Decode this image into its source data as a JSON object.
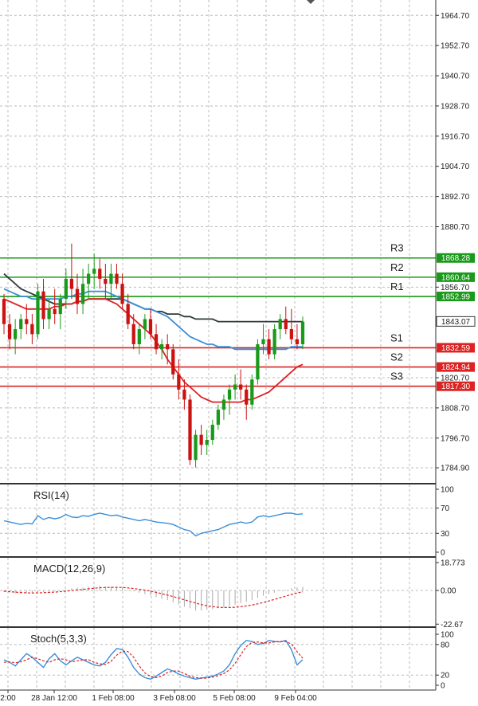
{
  "chart_data": {
    "type": "candlestick",
    "x_labels": [
      "2:00",
      "28 Jan 12:00",
      "1 Feb 08:00",
      "3 Feb 08:00",
      "5 Feb 08:00",
      "9 Feb 04:00"
    ],
    "main": {
      "ylim": [
        1778.9,
        1970.8
      ],
      "y_ticks": [
        "1964.70",
        "1952.70",
        "1940.70",
        "1928.70",
        "1916.70",
        "1904.70",
        "1892.70",
        "1880.70",
        "1856.70",
        "1820.70",
        "1808.70",
        "1796.70",
        "1784.90"
      ],
      "current_price": "1843.07",
      "candles": [
        [
          1852,
          1854,
          1838,
          1842
        ],
        [
          1842,
          1846,
          1832,
          1836
        ],
        [
          1836,
          1844,
          1830,
          1840
        ],
        [
          1840,
          1846,
          1836,
          1844
        ],
        [
          1844,
          1850,
          1838,
          1842
        ],
        [
          1842,
          1846,
          1834,
          1838
        ],
        [
          1838,
          1858,
          1836,
          1855
        ],
        [
          1855,
          1860,
          1840,
          1844
        ],
        [
          1844,
          1852,
          1840,
          1848
        ],
        [
          1848,
          1856,
          1842,
          1846
        ],
        [
          1846,
          1854,
          1840,
          1852
        ],
        [
          1852,
          1864,
          1848,
          1860
        ],
        [
          1860,
          1874,
          1852,
          1856
        ],
        [
          1856,
          1862,
          1846,
          1850
        ],
        [
          1850,
          1864,
          1846,
          1858
        ],
        [
          1858,
          1866,
          1852,
          1862
        ],
        [
          1862,
          1870,
          1856,
          1864
        ],
        [
          1864,
          1868,
          1856,
          1860
        ],
        [
          1860,
          1866,
          1852,
          1858
        ],
        [
          1858,
          1866,
          1852,
          1862
        ],
        [
          1862,
          1866,
          1856,
          1858
        ],
        [
          1858,
          1862,
          1848,
          1850
        ],
        [
          1850,
          1854,
          1840,
          1842
        ],
        [
          1842,
          1846,
          1832,
          1834
        ],
        [
          1834,
          1842,
          1830,
          1840
        ],
        [
          1840,
          1846,
          1836,
          1844
        ],
        [
          1844,
          1848,
          1836,
          1838
        ],
        [
          1838,
          1842,
          1830,
          1832
        ],
        [
          1832,
          1836,
          1828,
          1834
        ],
        [
          1834,
          1838,
          1826,
          1832
        ],
        [
          1832,
          1834,
          1820,
          1822
        ],
        [
          1822,
          1828,
          1812,
          1816
        ],
        [
          1816,
          1820,
          1808,
          1812
        ],
        [
          1812,
          1814,
          1786,
          1788
        ],
        [
          1788,
          1800,
          1785,
          1798
        ],
        [
          1798,
          1802,
          1790,
          1794
        ],
        [
          1794,
          1800,
          1790,
          1796
        ],
        [
          1796,
          1804,
          1794,
          1802
        ],
        [
          1802,
          1810,
          1800,
          1808
        ],
        [
          1808,
          1814,
          1804,
          1812
        ],
        [
          1812,
          1818,
          1806,
          1816
        ],
        [
          1816,
          1822,
          1812,
          1818
        ],
        [
          1818,
          1824,
          1812,
          1816
        ],
        [
          1816,
          1818,
          1804,
          1810
        ],
        [
          1810,
          1822,
          1808,
          1820
        ],
        [
          1820,
          1836,
          1818,
          1834
        ],
        [
          1834,
          1842,
          1830,
          1836
        ],
        [
          1836,
          1840,
          1828,
          1830
        ],
        [
          1830,
          1842,
          1828,
          1840
        ],
        [
          1840,
          1846,
          1836,
          1844
        ],
        [
          1844,
          1849,
          1838,
          1840
        ],
        [
          1840,
          1848,
          1834,
          1836
        ],
        [
          1836,
          1842,
          1832,
          1834
        ],
        [
          1834,
          1845,
          1832,
          1843
        ]
      ],
      "moving_averages": [
        {
          "color": "#2d3a3a",
          "values": [
            1862,
            1860,
            1858,
            1856,
            1855,
            1854,
            1853,
            1852,
            1851,
            1850,
            1850,
            1850,
            1850,
            1851,
            1851,
            1852,
            1852,
            1852,
            1852,
            1852,
            1852,
            1852,
            1851,
            1850,
            1849,
            1848,
            1848,
            1847,
            1847,
            1846,
            1846,
            1846,
            1845,
            1845,
            1844,
            1844,
            1844,
            1844,
            1843,
            1843,
            1843,
            1843,
            1843,
            1843,
            1843,
            1843,
            1843,
            1843,
            1843,
            1843,
            1843,
            1843,
            1843,
            1843
          ]
        },
        {
          "color": "#3a8fd8",
          "values": [
            1856,
            1855,
            1854,
            1853,
            1853,
            1852,
            1852,
            1852,
            1852,
            1852,
            1852,
            1853,
            1853,
            1854,
            1854,
            1855,
            1855,
            1855,
            1855,
            1854,
            1853,
            1852,
            1851,
            1850,
            1849,
            1848,
            1848,
            1847,
            1846,
            1845,
            1843,
            1841,
            1839,
            1837,
            1836,
            1835,
            1834,
            1834,
            1833,
            1833,
            1833,
            1832,
            1832,
            1832,
            1832,
            1832,
            1832,
            1832,
            1832,
            1832,
            1832,
            1833,
            1833,
            1833
          ]
        },
        {
          "color": "#dd2222",
          "values": [
            1852,
            1851,
            1850,
            1849,
            1848,
            1848,
            1848,
            1848,
            1848,
            1849,
            1849,
            1850,
            1850,
            1851,
            1851,
            1852,
            1852,
            1852,
            1852,
            1851,
            1850,
            1848,
            1846,
            1844,
            1842,
            1840,
            1838,
            1835,
            1832,
            1828,
            1825,
            1822,
            1819,
            1817,
            1815,
            1813,
            1812,
            1811,
            1811,
            1811,
            1811,
            1811,
            1811,
            1812,
            1812,
            1813,
            1814,
            1815,
            1817,
            1819,
            1821,
            1823,
            1825,
            1826
          ]
        }
      ],
      "levels": [
        {
          "name": "R3",
          "value": 1868.28,
          "label": "1868.28",
          "color": "#1a9a1a"
        },
        {
          "name": "R2",
          "value": 1860.64,
          "label": "1860.64",
          "color": "#1a9a1a"
        },
        {
          "name": "R1",
          "value": 1852.99,
          "label": "1852.99",
          "color": "#1a9a1a"
        },
        {
          "name": "S1",
          "value": 1832.59,
          "label": "1832.59",
          "color": "#dd2222"
        },
        {
          "name": "S2",
          "value": 1824.94,
          "label": "1824.94",
          "color": "#dd2222"
        },
        {
          "name": "S3",
          "value": 1817.3,
          "label": "1817.30",
          "color": "#dd2222"
        }
      ]
    },
    "rsi": {
      "title": "RSI(14)",
      "ylim": [
        0,
        100
      ],
      "y_ticks": [
        "100",
        "70",
        "30",
        "0"
      ],
      "color": "#3a8fd8",
      "values": [
        50,
        48,
        46,
        44,
        46,
        45,
        58,
        52,
        55,
        53,
        55,
        60,
        56,
        55,
        58,
        57,
        60,
        62,
        60,
        58,
        59,
        56,
        54,
        52,
        50,
        52,
        50,
        48,
        47,
        46,
        44,
        40,
        36,
        34,
        26,
        30,
        32,
        34,
        36,
        40,
        44,
        46,
        48,
        46,
        48,
        56,
        58,
        56,
        58,
        60,
        62,
        62,
        60,
        61
      ]
    },
    "macd": {
      "title": "MACD(12,26,9)",
      "ylim": [
        -22.673,
        18.773
      ],
      "y_ticks": [
        "18.773",
        "0.00",
        "-22.67"
      ],
      "histogram_color": "#aaaaaa",
      "signal_color": "#dd2222",
      "histogram": [
        -1,
        -1.5,
        -2,
        -2,
        -1.8,
        -1.6,
        -1,
        -1,
        -0.5,
        -0.5,
        0,
        0.5,
        1.5,
        1.8,
        2,
        2.5,
        2.8,
        3,
        2.8,
        2.5,
        2,
        1.5,
        0.5,
        -0.5,
        -1.5,
        -2.5,
        -3.5,
        -4.5,
        -5.5,
        -6.5,
        -8,
        -9.5,
        -11,
        -12,
        -13.5,
        -13.5,
        -13,
        -12.5,
        -12,
        -11.5,
        -10.5,
        -9.5,
        -8.5,
        -7.5,
        -6.5,
        -5,
        -3.5,
        -2.5,
        -1.5,
        -0.5,
        0.5,
        1.5,
        2,
        2.5
      ],
      "signal": [
        -0.5,
        -0.8,
        -1.1,
        -1.4,
        -1.6,
        -1.7,
        -1.6,
        -1.5,
        -1.3,
        -1.1,
        -0.8,
        -0.5,
        -0.1,
        0.3,
        0.7,
        1.1,
        1.5,
        1.8,
        2,
        2.1,
        2.1,
        2,
        1.7,
        1.3,
        0.8,
        0.2,
        -0.5,
        -1.3,
        -2.2,
        -3.1,
        -4.1,
        -5.2,
        -6.3,
        -7.4,
        -8.5,
        -9.5,
        -10.3,
        -10.9,
        -11.3,
        -11.5,
        -11.5,
        -11.3,
        -10.9,
        -10.4,
        -9.8,
        -9,
        -8.1,
        -7.1,
        -6,
        -4.9,
        -3.8,
        -2.7,
        -1.7,
        -0.8
      ]
    },
    "stoch": {
      "title": "Stoch(5,3,3)",
      "ylim": [
        0,
        100
      ],
      "y_ticks": [
        "100",
        "80",
        "20",
        "0"
      ],
      "main_color": "#3a8fd8",
      "signal_color": "#dd2222",
      "main": [
        50,
        45,
        38,
        50,
        62,
        55,
        45,
        35,
        52,
        62,
        48,
        40,
        48,
        55,
        50,
        45,
        40,
        38,
        45,
        60,
        72,
        70,
        55,
        35,
        22,
        15,
        12,
        18,
        25,
        32,
        28,
        22,
        18,
        15,
        12,
        14,
        16,
        18,
        22,
        28,
        40,
        62,
        78,
        88,
        86,
        80,
        82,
        88,
        86,
        85,
        88,
        70,
        40,
        50
      ],
      "signal": [
        45,
        46,
        44,
        46,
        50,
        55,
        52,
        48,
        45,
        50,
        52,
        50,
        46,
        48,
        50,
        50,
        45,
        42,
        41,
        47,
        59,
        67,
        66,
        55,
        38,
        24,
        17,
        15,
        18,
        25,
        28,
        28,
        23,
        18,
        15,
        14,
        14,
        16,
        19,
        23,
        30,
        43,
        60,
        76,
        84,
        85,
        83,
        83,
        85,
        86,
        86,
        81,
        66,
        53
      ]
    }
  }
}
